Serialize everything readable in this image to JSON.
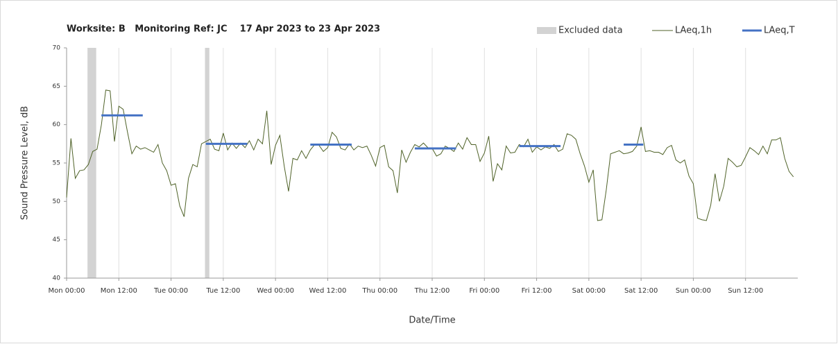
{
  "chart_data": {
    "type": "line",
    "title": "Worksite: B   Monitoring Ref: JC    17 Apr 2023 to 23 Apr 2023",
    "x_label": "Date/Time",
    "y_label": "Sound Pressure Level, dB",
    "xlim": [
      0,
      168
    ],
    "ylim": [
      40,
      70
    ],
    "xticks": [
      {
        "value": 0,
        "label": "Mon 00:00"
      },
      {
        "value": 12,
        "label": "Mon 12:00"
      },
      {
        "value": 24,
        "label": "Tue 00:00"
      },
      {
        "value": 36,
        "label": "Tue 12:00"
      },
      {
        "value": 48,
        "label": "Wed 00:00"
      },
      {
        "value": 60,
        "label": "Wed 12:00"
      },
      {
        "value": 72,
        "label": "Thu 00:00"
      },
      {
        "value": 84,
        "label": "Thu 12:00"
      },
      {
        "value": 96,
        "label": "Fri 00:00"
      },
      {
        "value": 108,
        "label": "Fri 12:00"
      },
      {
        "value": 120,
        "label": "Sat 00:00"
      },
      {
        "value": 132,
        "label": "Sat 12:00"
      },
      {
        "value": 144,
        "label": "Sun 00:00"
      },
      {
        "value": 156,
        "label": "Sun 12:00"
      }
    ],
    "yticks": [
      40,
      45,
      50,
      55,
      60,
      65,
      70
    ],
    "grid": "x",
    "legend": "top-right",
    "excluded": {
      "name": "Excluded data",
      "color": "#d3d3d3",
      "ranges": [
        [
          4.8,
          6.8
        ],
        [
          31.8,
          32.8
        ]
      ]
    },
    "series": [
      {
        "name": "LAeq,1h",
        "color": "#4f6228",
        "x": [
          0,
          1,
          2,
          3,
          4,
          5,
          6,
          7,
          8,
          9,
          10,
          11,
          12,
          13,
          14,
          15,
          16,
          17,
          18,
          19,
          20,
          21,
          22,
          23,
          24,
          25,
          26,
          27,
          28,
          29,
          30,
          31,
          32,
          33,
          34,
          35,
          36,
          37,
          38,
          39,
          40,
          41,
          42,
          43,
          44,
          45,
          46,
          47,
          48,
          49,
          50,
          51,
          52,
          53,
          54,
          55,
          56,
          57,
          58,
          59,
          60,
          61,
          62,
          63,
          64,
          65,
          66,
          67,
          68,
          69,
          70,
          71,
          72,
          73,
          74,
          75,
          76,
          77,
          78,
          79,
          80,
          81,
          82,
          83,
          84,
          85,
          86,
          87,
          88,
          89,
          90,
          91,
          92,
          93,
          94,
          95,
          96,
          97,
          98,
          99,
          100,
          101,
          102,
          103,
          104,
          105,
          106,
          107,
          108,
          109,
          110,
          111,
          112,
          113,
          114,
          115,
          116,
          117,
          118,
          119,
          120,
          121,
          122,
          123,
          124,
          125,
          126,
          127,
          128,
          129,
          130,
          131,
          132,
          133,
          134,
          135,
          136,
          137,
          138,
          139,
          140,
          141,
          142,
          143,
          144,
          145,
          146,
          147,
          148,
          149,
          150,
          151,
          152,
          153,
          154,
          155,
          156,
          157,
          158,
          159,
          160,
          161,
          162,
          163,
          164,
          165,
          166,
          167
        ],
        "values": [
          50.5,
          58.2,
          53,
          54,
          54.1,
          54.8,
          56.5,
          56.8,
          60,
          64.5,
          64.4,
          57.8,
          62.4,
          62,
          59,
          56.2,
          57.2,
          56.8,
          57,
          56.7,
          56.4,
          57.4,
          55,
          54,
          52.1,
          52.3,
          49.4,
          48,
          53,
          54.8,
          54.5,
          57.5,
          57.8,
          58.1,
          56.8,
          56.6,
          58.9,
          56.7,
          57.6,
          56.9,
          57.6,
          57,
          57.9,
          56.7,
          58.1,
          57.5,
          61.8,
          54.8,
          57.3,
          58.6,
          54.6,
          51.3,
          55.6,
          55.4,
          56.6,
          55.6,
          56.7,
          57.4,
          57.3,
          56.5,
          57,
          59,
          58.4,
          56.9,
          56.7,
          57.5,
          56.7,
          57.2,
          57,
          57.2,
          56,
          54.6,
          57,
          57.3,
          54.5,
          54,
          51.1,
          56.7,
          55.1,
          56.4,
          57.4,
          57.1,
          57.6,
          57,
          56.9,
          55.9,
          56.2,
          57.2,
          56.9,
          56.5,
          57.6,
          56.8,
          58.3,
          57.4,
          57.4,
          55.2,
          56.3,
          58.5,
          52.6,
          54.9,
          54.1,
          57.2,
          56.3,
          56.4,
          57.4,
          57.1,
          58.1,
          56.4,
          57.1,
          56.7,
          57.1,
          56.9,
          57.4,
          56.5,
          56.8,
          58.8,
          58.6,
          58.1,
          56.2,
          54.6,
          52.5,
          54.1,
          47.5,
          47.6,
          51.5,
          56.2,
          56.4,
          56.6,
          56.2,
          56.3,
          56.5,
          57.2,
          59.7,
          56.5,
          56.6,
          56.4,
          56.4,
          56.1,
          57,
          57.3,
          55.4,
          55,
          55.4,
          53.3,
          52.3,
          47.8,
          47.6,
          47.5,
          49.5,
          53.6,
          50,
          52,
          55.6,
          55.1,
          54.5,
          54.7,
          55.8,
          57,
          56.6,
          56.1,
          57.2,
          56.2,
          58,
          58,
          58.3,
          55.6,
          53.9,
          53.2
        ]
      },
      {
        "name": "LAeq,T",
        "color": "#4472c4",
        "segments": [
          {
            "start": 8,
            "end": 17.5,
            "value": 61.2
          },
          {
            "start": 32,
            "end": 41.5,
            "value": 57.5
          },
          {
            "start": 56,
            "end": 65.5,
            "value": 57.4
          },
          {
            "start": 80,
            "end": 89.5,
            "value": 56.9
          },
          {
            "start": 104,
            "end": 113.5,
            "value": 57.2
          },
          {
            "start": 128,
            "end": 132.5,
            "value": 57.4
          }
        ]
      }
    ]
  }
}
